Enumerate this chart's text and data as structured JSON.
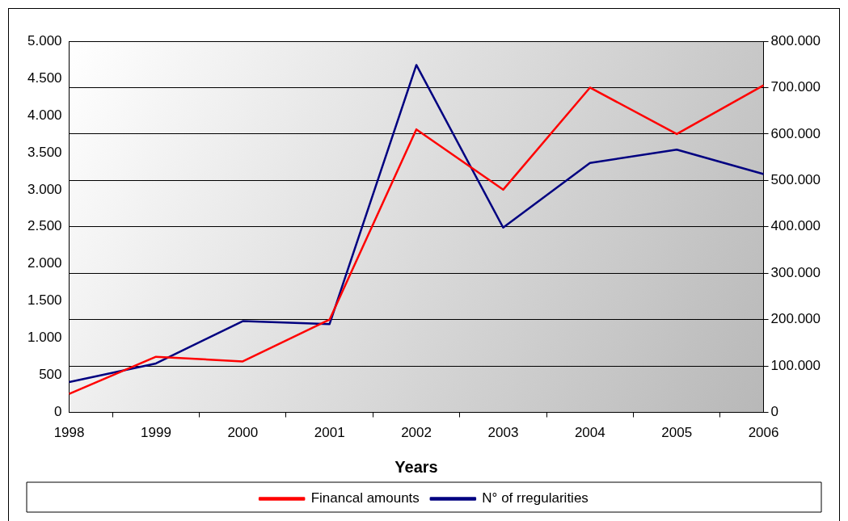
{
  "chart_data": {
    "type": "line",
    "xlabel": "Years",
    "categories": [
      "1998",
      "1999",
      "2000",
      "2001",
      "2002",
      "2003",
      "2004",
      "2005",
      "2006"
    ],
    "series": [
      {
        "name": "Financal amounts",
        "color": "#ff0000",
        "axis": "y2",
        "values": [
          40000,
          120000,
          110000,
          200000,
          610000,
          480000,
          700000,
          600000,
          705000
        ]
      },
      {
        "name": "N° of rregularities",
        "color": "#000080",
        "axis": "y",
        "values": [
          410,
          660,
          1230,
          1190,
          4680,
          2490,
          3360,
          3540,
          3210
        ]
      }
    ],
    "ylim": [
      0,
      5000
    ],
    "yticks": [
      0,
      500,
      {
        "value": 1000,
        "label": "1.000"
      },
      {
        "value": 1500,
        "label": "1.500"
      },
      {
        "value": 2000,
        "label": "2.000"
      },
      {
        "value": 2500,
        "label": "2.500"
      },
      {
        "value": 3000,
        "label": "3.000"
      },
      {
        "value": 3500,
        "label": "3.500"
      },
      {
        "value": 4000,
        "label": "4.000"
      },
      {
        "value": 4500,
        "label": "4.500"
      },
      {
        "value": 5000,
        "label": "5.000"
      }
    ],
    "y2lim": [
      0,
      800000
    ],
    "y2ticks": [
      0,
      {
        "value": 100000,
        "label": "100.000"
      },
      {
        "value": 200000,
        "label": "200.000"
      },
      {
        "value": 300000,
        "label": "300.000"
      },
      {
        "value": 400000,
        "label": "400.000"
      },
      {
        "value": 500000,
        "label": "500.000"
      },
      {
        "value": 600000,
        "label": "600.000"
      },
      {
        "value": 700000,
        "label": "700.000"
      },
      {
        "value": 800000,
        "label": "800.000"
      }
    ],
    "grid": "y2",
    "legend": "bottom",
    "marker": "none",
    "line_style": "solid"
  }
}
